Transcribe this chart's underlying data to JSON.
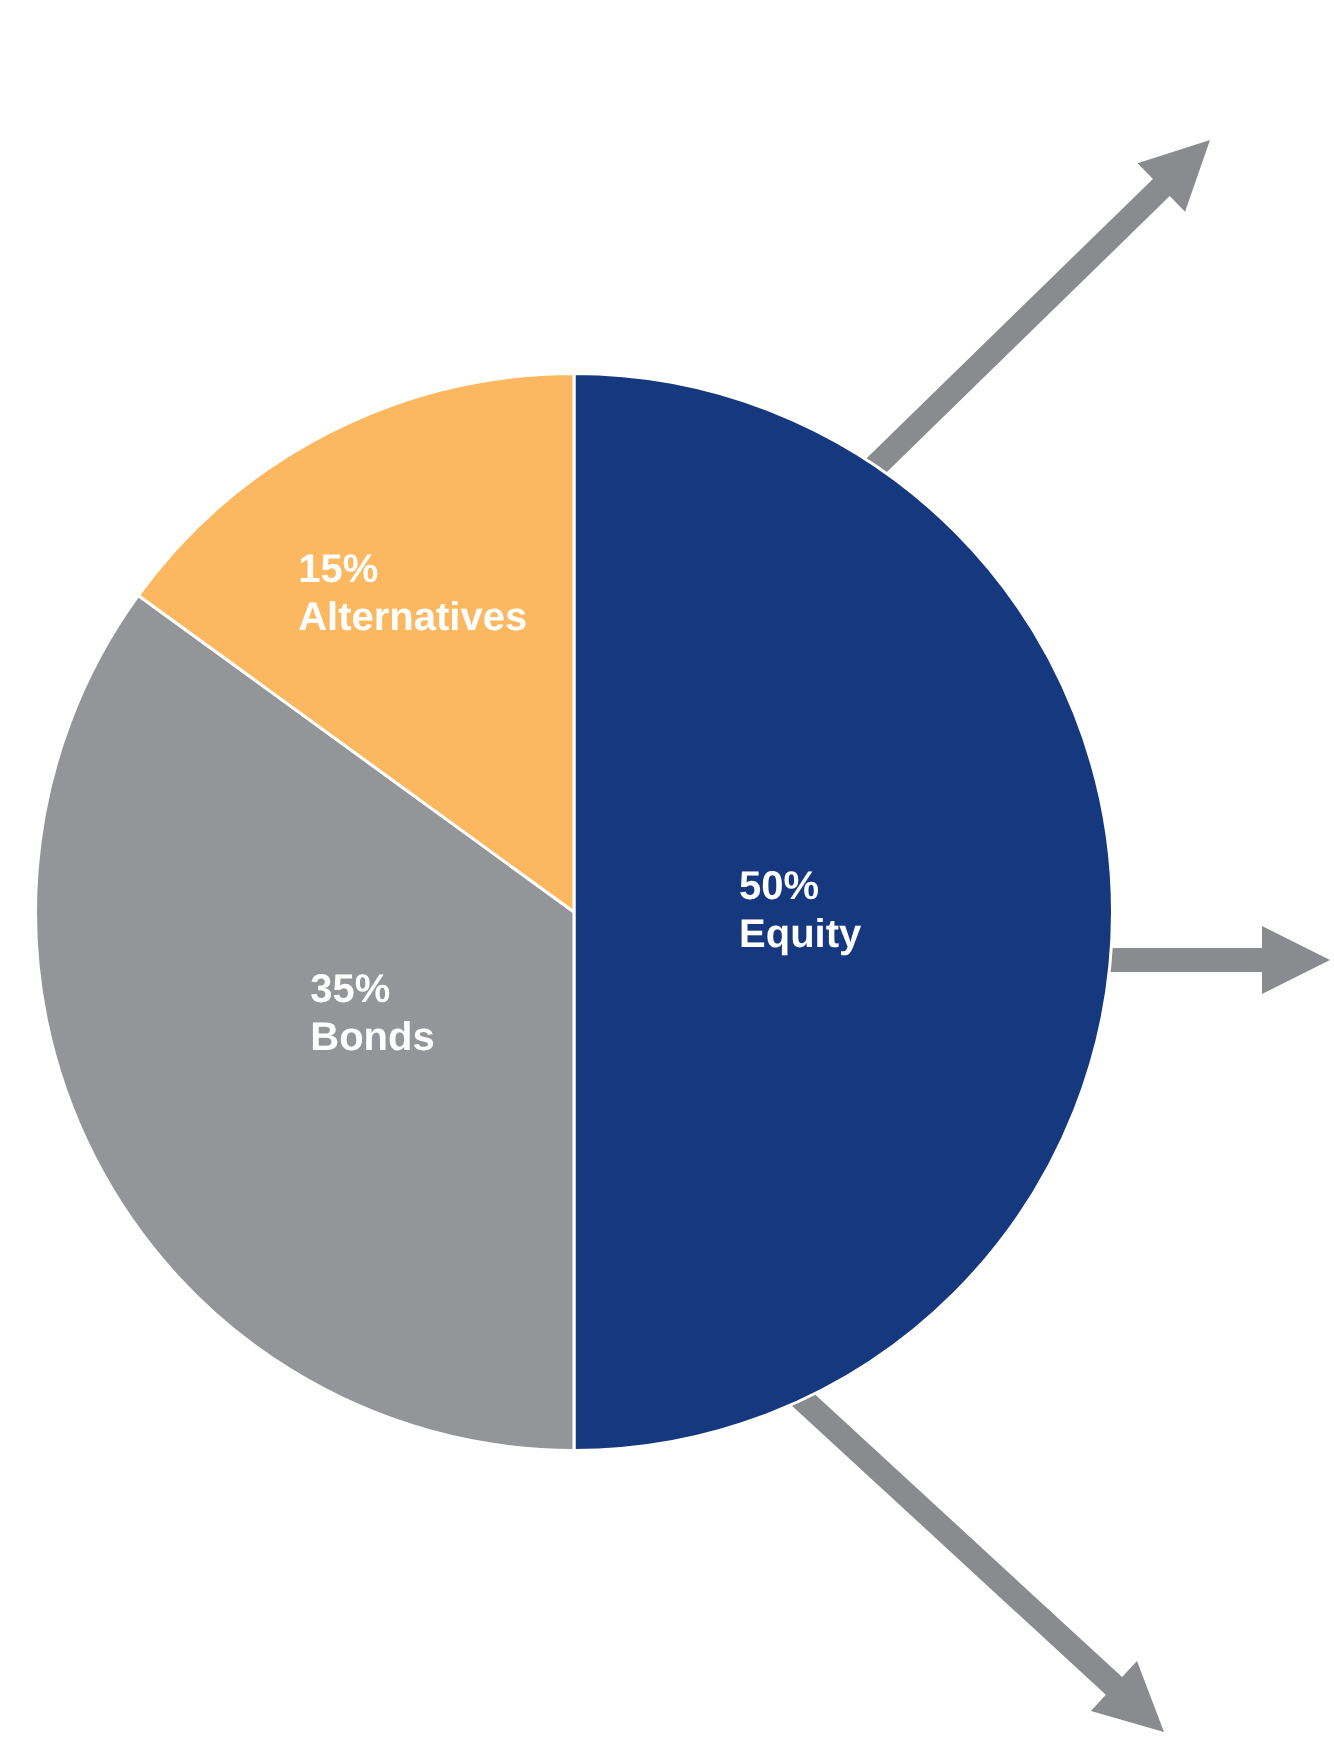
{
  "chart_data": {
    "type": "pie",
    "categories": [
      "Equity",
      "Bonds",
      "Alternatives"
    ],
    "values": [
      50,
      35,
      15
    ],
    "colors": [
      "#15387e",
      "#939598",
      "#fbb860"
    ],
    "value_labels": [
      "50%",
      "35%",
      "15%"
    ],
    "legend": false
  }
}
